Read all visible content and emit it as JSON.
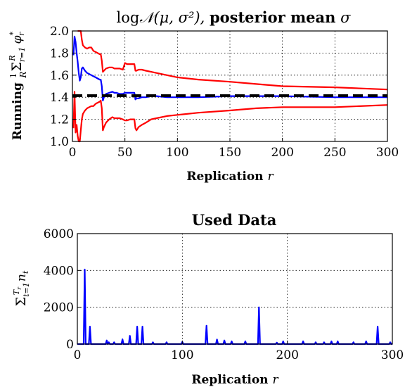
{
  "chart_data": [
    {
      "type": "line",
      "title": "logN(μ, σ²), posterior mean σ",
      "title_parts": {
        "pre": "log",
        "n": "𝒩",
        "args": "(μ, σ²), ",
        "bold": "posterior mean",
        "sigma": " σ"
      },
      "xlabel": "Replication r",
      "xlabel_parts": {
        "text": "Replication ",
        "var": "r"
      },
      "ylabel": "Running 1/R Σ_{r=1}^{R} φ*_r",
      "ylabel_parts": {
        "text": "Running ",
        "frac_num": "1",
        "frac_den": "R",
        "sum": "Σ",
        "sub": "r=1",
        "sup": "R",
        "phi": "φ",
        "star": "*",
        "phisub": "r"
      },
      "xlim": [
        0,
        300
      ],
      "ylim": [
        1.0,
        2.0
      ],
      "xticks": [
        0,
        50,
        100,
        150,
        200,
        250,
        300
      ],
      "yticks": [
        1.0,
        1.2,
        1.4,
        1.6,
        1.8,
        2.0
      ],
      "ytick_labels": [
        "1.0",
        "1.2",
        "1.4",
        "1.6",
        "1.8",
        "2.0"
      ],
      "grid": true,
      "series": [
        {
          "color": "#0000ff",
          "style": "solid",
          "x": [
            1,
            2,
            3,
            4,
            5,
            6,
            7,
            8,
            9,
            10,
            12,
            14,
            16,
            18,
            20,
            22,
            24,
            26,
            27,
            28,
            29,
            30,
            32,
            35,
            38,
            40,
            42,
            45,
            48,
            50,
            52,
            55,
            57,
            59,
            60,
            61,
            63,
            66,
            70,
            75,
            80,
            90,
            100,
            120,
            150,
            175,
            200,
            250,
            300
          ],
          "y": [
            1.78,
            1.95,
            1.9,
            1.8,
            1.72,
            1.62,
            1.55,
            1.58,
            1.66,
            1.67,
            1.64,
            1.62,
            1.61,
            1.6,
            1.59,
            1.58,
            1.57,
            1.56,
            1.56,
            1.5,
            1.37,
            1.4,
            1.43,
            1.44,
            1.45,
            1.44,
            1.44,
            1.43,
            1.43,
            1.44,
            1.44,
            1.44,
            1.44,
            1.44,
            1.38,
            1.39,
            1.39,
            1.4,
            1.4,
            1.41,
            1.41,
            1.4,
            1.4,
            1.4,
            1.41,
            1.41,
            1.41,
            1.4,
            1.4
          ]
        },
        {
          "color": "#ff0000",
          "style": "solid",
          "x": [
            5,
            6,
            7,
            8,
            9,
            10,
            12,
            14,
            16,
            18,
            20,
            22,
            24,
            26,
            27,
            28,
            29,
            30,
            32,
            35,
            38,
            40,
            42,
            45,
            48,
            50,
            52,
            55,
            57,
            59,
            60,
            61,
            63,
            66,
            70,
            75,
            80,
            90,
            100,
            120,
            150,
            175,
            200,
            250,
            300
          ],
          "y": [
            2.0,
            2.05,
            2.1,
            2.0,
            1.92,
            1.87,
            1.85,
            1.84,
            1.85,
            1.85,
            1.82,
            1.81,
            1.8,
            1.79,
            1.79,
            1.73,
            1.63,
            1.64,
            1.66,
            1.67,
            1.67,
            1.66,
            1.66,
            1.66,
            1.65,
            1.71,
            1.7,
            1.7,
            1.7,
            1.7,
            1.64,
            1.64,
            1.65,
            1.65,
            1.64,
            1.63,
            1.62,
            1.6,
            1.58,
            1.56,
            1.54,
            1.52,
            1.5,
            1.49,
            1.47
          ]
        },
        {
          "color": "#ff0000",
          "style": "solid",
          "x": [
            1,
            2,
            3,
            4,
            5,
            6,
            7,
            8,
            9,
            10,
            12,
            14,
            16,
            18,
            20,
            22,
            24,
            26,
            27,
            28,
            29,
            30,
            32,
            35,
            38,
            40,
            42,
            45,
            48,
            50,
            52,
            55,
            57,
            59,
            60,
            61,
            63,
            66,
            70,
            75,
            80,
            90,
            100,
            120,
            150,
            175,
            200,
            250,
            300
          ],
          "y": [
            1.12,
            1.45,
            1.08,
            1.15,
            1.05,
            0.98,
            1.0,
            1.1,
            1.2,
            1.25,
            1.28,
            1.3,
            1.31,
            1.32,
            1.32,
            1.34,
            1.35,
            1.36,
            1.37,
            1.3,
            1.1,
            1.13,
            1.17,
            1.2,
            1.22,
            1.21,
            1.21,
            1.21,
            1.2,
            1.19,
            1.19,
            1.2,
            1.2,
            1.2,
            1.12,
            1.1,
            1.13,
            1.15,
            1.17,
            1.2,
            1.21,
            1.23,
            1.24,
            1.26,
            1.28,
            1.3,
            1.31,
            1.31,
            1.33
          ]
        },
        {
          "color": "#000000",
          "style": "dashed",
          "x": [
            0,
            300
          ],
          "y": [
            1.414,
            1.414
          ]
        }
      ]
    },
    {
      "type": "line",
      "title": "Used Data",
      "xlabel": "Replication r",
      "xlabel_parts": {
        "text": "Replication ",
        "var": "r"
      },
      "ylabel": "Σ_{t=1}^{T_r} n_t",
      "ylabel_parts": {
        "sum": "Σ",
        "sub": "t=1",
        "sup": "T",
        "supsub": "r",
        "n": "n",
        "nsub": "t"
      },
      "xlim": [
        0,
        300
      ],
      "ylim": [
        0,
        6000
      ],
      "xticks": [
        0,
        100,
        200,
        300
      ],
      "yticks": [
        0,
        2000,
        4000,
        6000
      ],
      "grid": true,
      "series": [
        {
          "color": "#0000ff",
          "style": "solid",
          "spikes": [
            [
              7,
              4050
            ],
            [
              12,
              950
            ],
            [
              28,
              200
            ],
            [
              30,
              100
            ],
            [
              35,
              100
            ],
            [
              43,
              260
            ],
            [
              50,
              450
            ],
            [
              57,
              950
            ],
            [
              62,
              950
            ],
            [
              72,
              100
            ],
            [
              85,
              100
            ],
            [
              100,
              120
            ],
            [
              123,
              1000
            ],
            [
              133,
              250
            ],
            [
              140,
              200
            ],
            [
              147,
              150
            ],
            [
              160,
              150
            ],
            [
              173,
              2000
            ],
            [
              190,
              80
            ],
            [
              196,
              150
            ],
            [
              215,
              150
            ],
            [
              227,
              100
            ],
            [
              235,
              100
            ],
            [
              242,
              150
            ],
            [
              248,
              150
            ],
            [
              263,
              100
            ],
            [
              275,
              150
            ],
            [
              286,
              950
            ],
            [
              298,
              100
            ]
          ]
        }
      ]
    }
  ]
}
